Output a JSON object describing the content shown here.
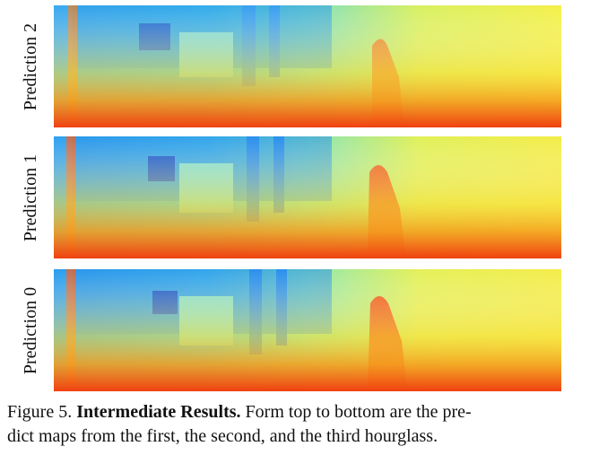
{
  "figure": {
    "rows": [
      {
        "label": "Prediction 2"
      },
      {
        "label": "Prediction 1"
      },
      {
        "label": "Prediction 0"
      }
    ],
    "caption": {
      "prefix": "Figure 5. ",
      "title": "Intermediate Results.",
      "line1_rest": " Form top to bottom are the pre-",
      "line2": "dict maps from the first, the second, and the third hourglass."
    },
    "colormap": {
      "far": "#1478e8",
      "mid_far": "#3cc8f0",
      "mid": "#8ce8b4",
      "near_mid": "#e8f050",
      "near": "#f4c020",
      "closest": "#f04010"
    }
  }
}
